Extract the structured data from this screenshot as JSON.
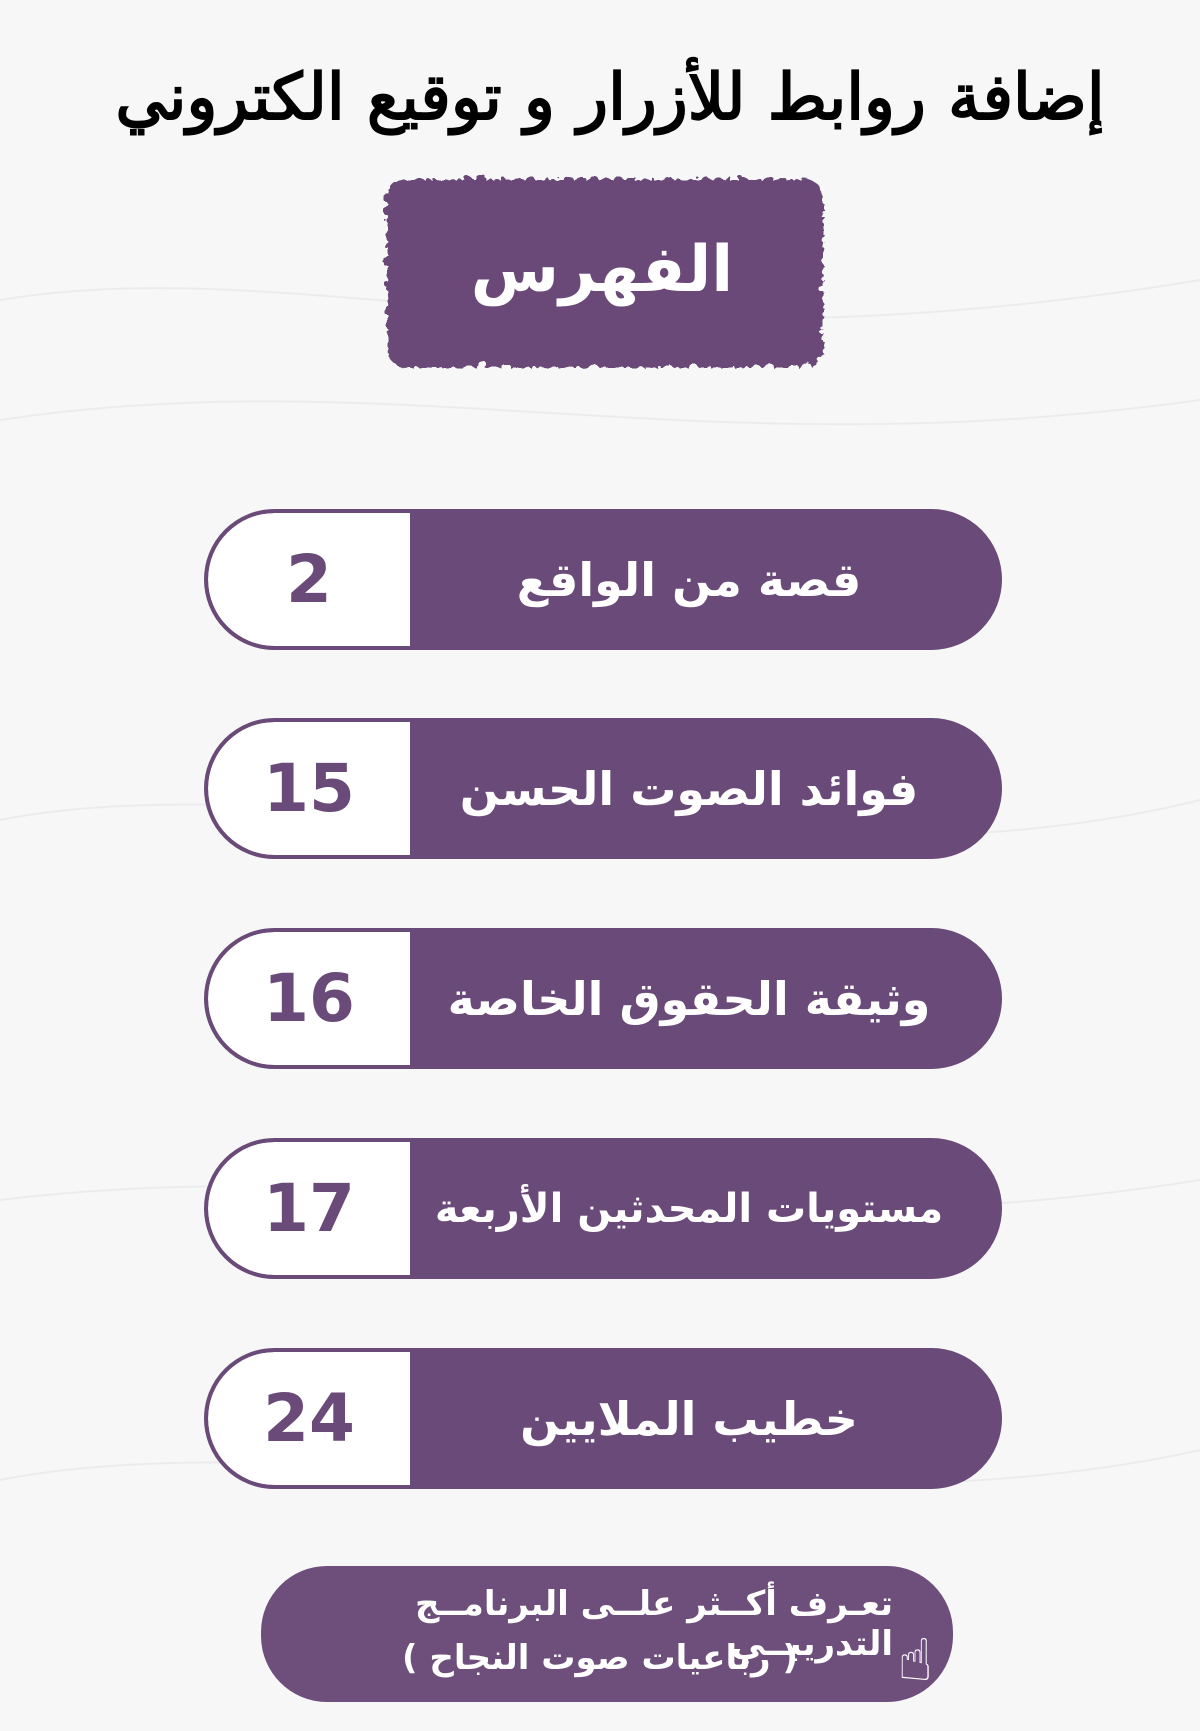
{
  "header": {
    "title": "إضافة روابط للأزرار و توقيع الكتروني"
  },
  "index_badge": {
    "label": "الفهرس"
  },
  "colors": {
    "primary": "#6a4a78",
    "background": "#f7f7f8"
  },
  "items": [
    {
      "label": "قصة من الواقع",
      "page": "2"
    },
    {
      "label": "فوائد الصوت الحسن",
      "page": "15"
    },
    {
      "label": "وثيقة الحقوق الخاصة",
      "page": "16"
    },
    {
      "label": "مستويات المحدثين الأربعة",
      "page": "17"
    },
    {
      "label": "خطيب الملايين",
      "page": "24"
    }
  ],
  "learn_more": {
    "line1": "تعـرف أكــثر علــى البرنامــج التدريبــي",
    "line2": "( رباعيات صوت النجاح )",
    "icon": "pointing-hand-click-icon"
  }
}
